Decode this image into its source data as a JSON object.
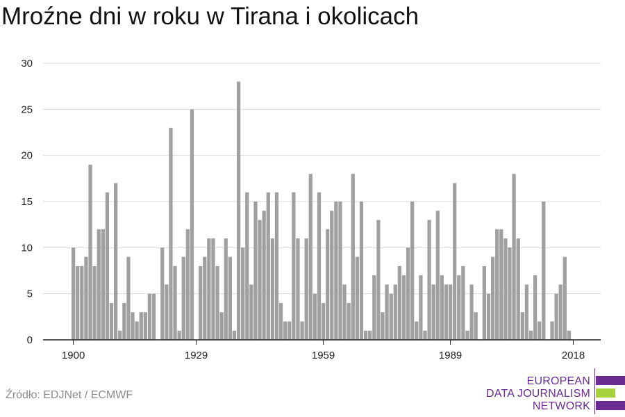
{
  "title": "Mroźne dni w roku w Tirana i okolicach",
  "source": "Źródło: EDJNet / ECMWF",
  "logo": {
    "lines": [
      "EUROPEAN",
      "DATA JOURNALISM",
      "NETWORK"
    ],
    "colors": {
      "purple": "#6a2c91",
      "green": "#a6d33b"
    }
  },
  "colors": {
    "bar": "#a0a0a0",
    "grid": "#d9d9d9",
    "axis": "#222222",
    "text": "#222222"
  },
  "chart_data": {
    "type": "bar",
    "title": "Mroźne dni w roku w Tirana i okolicach",
    "xlabel": "",
    "ylabel": "",
    "ylim": [
      0,
      30
    ],
    "yticks": [
      0,
      5,
      10,
      15,
      20,
      25,
      30
    ],
    "xticks": [
      1900,
      1929,
      1959,
      1989,
      2018
    ],
    "grid": true,
    "x": [
      1900,
      1901,
      1902,
      1903,
      1904,
      1905,
      1906,
      1907,
      1908,
      1909,
      1910,
      1911,
      1912,
      1913,
      1914,
      1915,
      1916,
      1917,
      1918,
      1919,
      1920,
      1921,
      1922,
      1923,
      1924,
      1925,
      1926,
      1927,
      1928,
      1929,
      1930,
      1931,
      1932,
      1933,
      1934,
      1935,
      1936,
      1937,
      1938,
      1939,
      1940,
      1941,
      1942,
      1943,
      1944,
      1945,
      1946,
      1947,
      1948,
      1949,
      1950,
      1951,
      1952,
      1953,
      1954,
      1955,
      1956,
      1957,
      1958,
      1959,
      1960,
      1961,
      1962,
      1963,
      1964,
      1965,
      1966,
      1967,
      1968,
      1969,
      1970,
      1971,
      1972,
      1973,
      1974,
      1975,
      1976,
      1977,
      1978,
      1979,
      1980,
      1981,
      1982,
      1983,
      1984,
      1985,
      1986,
      1987,
      1988,
      1989,
      1990,
      1991,
      1992,
      1993,
      1994,
      1995,
      1996,
      1997,
      1998,
      1999,
      2000,
      2001,
      2002,
      2003,
      2004,
      2005,
      2006,
      2007,
      2008,
      2009,
      2010,
      2011,
      2012,
      2013,
      2014,
      2015,
      2016,
      2017,
      2018
    ],
    "values": [
      10,
      8,
      8,
      9,
      19,
      8,
      12,
      12,
      16,
      4,
      17,
      1,
      4,
      9,
      3,
      2,
      3,
      3,
      5,
      5,
      0,
      10,
      6,
      23,
      8,
      1,
      9,
      12,
      25,
      0,
      8,
      9,
      11,
      11,
      8,
      3,
      11,
      9,
      1,
      28,
      10,
      16,
      6,
      15,
      13,
      14,
      16,
      11,
      16,
      4,
      2,
      2,
      16,
      11,
      2,
      11,
      18,
      5,
      16,
      4,
      12,
      14,
      15,
      15,
      6,
      4,
      18,
      9,
      15,
      1,
      1,
      7,
      13,
      3,
      6,
      5,
      6,
      8,
      7,
      10,
      15,
      2,
      7,
      1,
      13,
      6,
      14,
      7,
      6,
      6,
      17,
      7,
      8,
      1,
      6,
      3,
      0,
      8,
      5,
      9,
      12,
      12,
      11,
      10,
      18,
      11,
      3,
      6,
      1,
      7,
      2,
      15,
      0,
      2,
      5,
      6,
      9,
      1,
      0
    ]
  }
}
